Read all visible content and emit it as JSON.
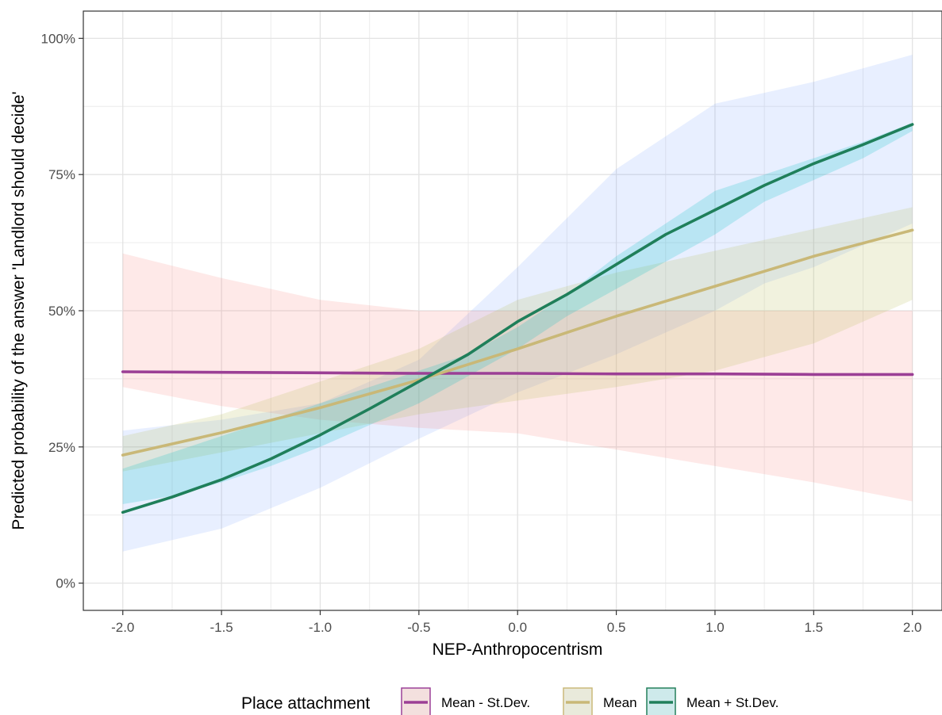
{
  "chart_data": {
    "type": "line",
    "xlabel": "NEP-Anthropocentrism",
    "ylabel": "Predicted probability of the answer 'Landlord should decide'",
    "xlim": [
      -2.2,
      2.15
    ],
    "ylim": [
      -0.05,
      1.05
    ],
    "x_ticks": [
      -2.0,
      -1.5,
      -1.0,
      -0.5,
      0.0,
      0.5,
      1.0,
      1.5,
      2.0
    ],
    "x_tick_labels": [
      "-2.0",
      "-1.5",
      "-1.0",
      "-0.5",
      "0.0",
      "0.5",
      "1.0",
      "1.5",
      "2.0"
    ],
    "y_ticks": [
      0,
      0.25,
      0.5,
      0.75,
      1.0
    ],
    "y_tick_labels": [
      "0%",
      "25%",
      "50%",
      "75%",
      "100%"
    ],
    "grid": true,
    "legend": {
      "title": "Place attachment",
      "position": "bottom"
    },
    "series": [
      {
        "name": "Mean - St.Dev.",
        "color": "#9b3f95",
        "ribbon_color": "#f8766d",
        "x": [
          -2.0,
          -1.5,
          -1.0,
          -0.5,
          0.0,
          0.5,
          1.0,
          1.5,
          2.0
        ],
        "y": [
          0.388,
          0.387,
          0.386,
          0.385,
          0.385,
          0.384,
          0.384,
          0.383,
          0.383
        ],
        "lower": [
          0.36,
          0.325,
          0.3,
          0.285,
          0.275,
          0.245,
          0.215,
          0.185,
          0.15
        ],
        "upper": [
          0.605,
          0.56,
          0.52,
          0.5,
          0.5,
          0.5,
          0.5,
          0.5,
          0.5
        ]
      },
      {
        "name": "Mean",
        "color": "#c9b877",
        "ribbon_color": "#b8bc5a",
        "x": [
          -2.0,
          -1.5,
          -1.0,
          -0.5,
          0.0,
          0.5,
          1.0,
          1.5,
          2.0
        ],
        "y": [
          0.235,
          0.276,
          0.322,
          0.373,
          0.43,
          0.49,
          0.545,
          0.6,
          0.648
        ],
        "lower": [
          0.205,
          0.24,
          0.275,
          0.31,
          0.335,
          0.36,
          0.39,
          0.44,
          0.52
        ],
        "upper": [
          0.27,
          0.31,
          0.37,
          0.43,
          0.52,
          0.57,
          0.61,
          0.65,
          0.69
        ]
      },
      {
        "name": "Mean + St.Dev.",
        "color": "#1f7f5a",
        "ribbon_color": "#00bfc4",
        "x": [
          -2.0,
          -1.75,
          -1.5,
          -1.25,
          -1.0,
          -0.75,
          -0.5,
          -0.25,
          0.0,
          0.25,
          0.5,
          0.75,
          1.0,
          1.25,
          1.5,
          1.75,
          2.0
        ],
        "y": [
          0.13,
          0.158,
          0.19,
          0.228,
          0.272,
          0.32,
          0.37,
          0.42,
          0.48,
          0.53,
          0.585,
          0.64,
          0.685,
          0.73,
          0.77,
          0.805,
          0.842
        ],
        "lower": [
          0.145,
          0.16,
          0.185,
          0.215,
          0.25,
          0.29,
          0.33,
          0.38,
          0.43,
          0.49,
          0.54,
          0.59,
          0.64,
          0.7,
          0.74,
          0.78,
          0.83
        ],
        "upper": [
          0.21,
          0.24,
          0.27,
          0.3,
          0.33,
          0.36,
          0.39,
          0.42,
          0.47,
          0.53,
          0.6,
          0.66,
          0.72,
          0.75,
          0.78,
          0.81,
          0.845
        ]
      }
    ],
    "outer_band": {
      "color": "#5b8cff",
      "x": [
        -2.0,
        -1.5,
        -1.0,
        -0.5,
        0.0,
        0.5,
        1.0,
        1.25,
        1.5,
        2.0
      ],
      "lower": [
        0.058,
        0.1,
        0.175,
        0.265,
        0.35,
        0.42,
        0.5,
        0.55,
        0.58,
        0.66
      ],
      "upper": [
        0.28,
        0.3,
        0.33,
        0.41,
        0.58,
        0.76,
        0.88,
        0.9,
        0.92,
        0.97
      ]
    }
  }
}
